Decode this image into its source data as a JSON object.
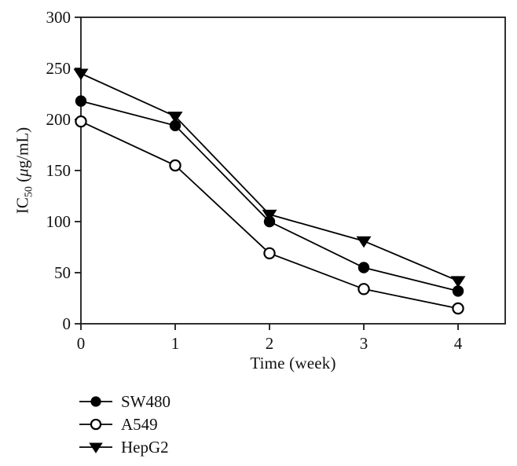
{
  "figure": {
    "background": "#ffffff",
    "axis_color": "#1a1a1a",
    "series_color": "#000000"
  },
  "chart_data": {
    "type": "line",
    "title": "",
    "xlabel": "Time (week)",
    "ylabel": {
      "prefix": "IC",
      "sub": "50",
      "unit_prefix": " (",
      "mu": "μ",
      "unit_suffix": "g/mL)"
    },
    "x": [
      0,
      1,
      2,
      3,
      4
    ],
    "xticks": [
      0,
      1,
      2,
      3,
      4
    ],
    "yticks": [
      0,
      50,
      100,
      150,
      200,
      250,
      300
    ],
    "xlim": [
      0,
      4.5
    ],
    "ylim": [
      0,
      300
    ],
    "grid": false,
    "frame": "box",
    "legend_position": "below-left",
    "series": [
      {
        "name": "SW480",
        "marker": "filled-circle",
        "color": "#000000",
        "values": [
          218,
          194,
          100,
          55,
          32
        ]
      },
      {
        "name": "A549",
        "marker": "open-circle",
        "color": "#000000",
        "values": [
          198,
          155,
          69,
          34,
          15
        ]
      },
      {
        "name": "HepG2",
        "marker": "filled-triangle-down",
        "color": "#000000",
        "values": [
          245,
          203,
          107,
          81,
          42
        ]
      }
    ]
  }
}
